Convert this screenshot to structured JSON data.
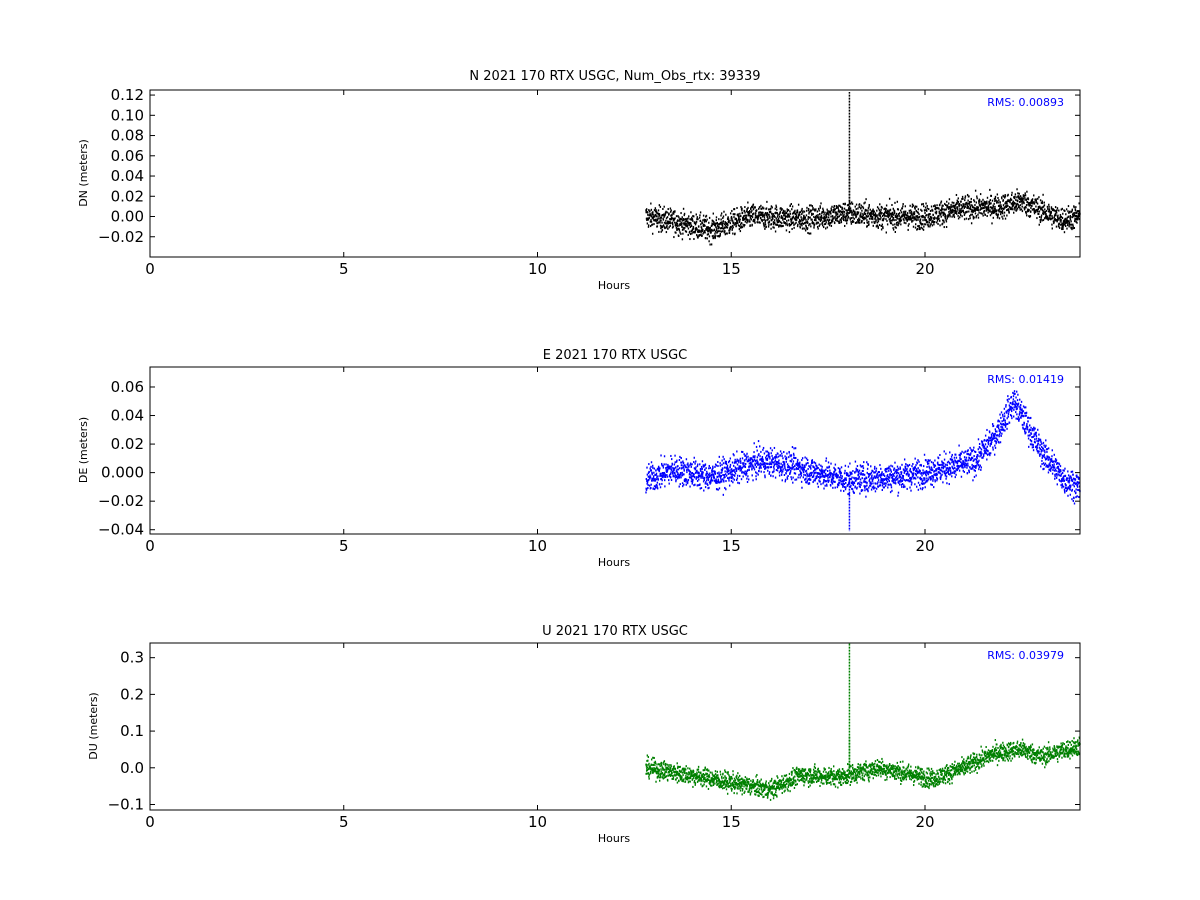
{
  "chart_data": [
    {
      "type": "scatter",
      "title": "N 2021 170 RTX  USGC, Num_Obs_rtx: 39339",
      "xlabel": "Hours",
      "ylabel": "DN (meters)",
      "xlim": [
        0,
        24
      ],
      "ylim": [
        -0.04,
        0.125
      ],
      "xticks": [
        0,
        5,
        10,
        15,
        20
      ],
      "yticks": [
        -0.02,
        0.0,
        0.02,
        0.04,
        0.06,
        0.08,
        0.1,
        0.12
      ],
      "ytick_labels": [
        "−0.02",
        "0.00",
        "0.02",
        "0.04",
        "0.06",
        "0.08",
        "0.10",
        "0.12"
      ],
      "color": "#000000",
      "annotation": "RMS:  0.00893",
      "series": [
        {
          "x_range": [
            12.8,
            24
          ],
          "trend": [
            [
              12.8,
              0.0
            ],
            [
              13.5,
              -0.005
            ],
            [
              14.5,
              -0.013
            ],
            [
              15.5,
              0.0
            ],
            [
              17.0,
              -0.002
            ],
            [
              18.0,
              0.003
            ],
            [
              19.0,
              0.0
            ],
            [
              20.0,
              0.0
            ],
            [
              21.0,
              0.008
            ],
            [
              22.0,
              0.01
            ],
            [
              22.5,
              0.015
            ],
            [
              23.5,
              -0.003
            ],
            [
              24.0,
              0.0
            ]
          ],
          "spread": 0.012,
          "spikes": [
            [
              18.05,
              0.123
            ],
            [
              18.05,
              0.045
            ]
          ]
        }
      ]
    },
    {
      "type": "scatter",
      "title": "E 2021 170 RTX  USGC",
      "xlabel": "Hours",
      "ylabel": "DE (meters)",
      "xlim": [
        0,
        24
      ],
      "ylim": [
        -0.043,
        0.074
      ],
      "xticks": [
        0,
        5,
        10,
        15,
        20
      ],
      "yticks": [
        -0.04,
        -0.02,
        0.0,
        0.02,
        0.04,
        0.06
      ],
      "ytick_labels": [
        "−0.04",
        "−0.02",
        "0.000",
        "0.02",
        "0.04",
        "0.06"
      ],
      "color": "#0000ff",
      "annotation": "RMS:  0.01419",
      "series": [
        {
          "x_range": [
            12.8,
            24
          ],
          "trend": [
            [
              12.8,
              -0.005
            ],
            [
              13.5,
              0.002
            ],
            [
              14.5,
              -0.003
            ],
            [
              15.8,
              0.008
            ],
            [
              16.5,
              0.005
            ],
            [
              17.5,
              -0.002
            ],
            [
              18.0,
              -0.005
            ],
            [
              19.5,
              -0.002
            ],
            [
              20.5,
              0.003
            ],
            [
              21.3,
              0.008
            ],
            [
              21.8,
              0.025
            ],
            [
              22.3,
              0.05
            ],
            [
              23.0,
              0.015
            ],
            [
              23.6,
              -0.005
            ],
            [
              24.0,
              -0.01
            ]
          ],
          "spread": 0.01,
          "spikes": [
            [
              18.05,
              -0.041
            ]
          ]
        }
      ]
    },
    {
      "type": "scatter",
      "title": "U 2021 170 RTX  USGC",
      "xlabel": "Hours",
      "ylabel": "DU (meters)",
      "xlim": [
        0,
        24
      ],
      "ylim": [
        -0.115,
        0.34
      ],
      "xticks": [
        0,
        5,
        10,
        15,
        20
      ],
      "yticks": [
        -0.1,
        0.0,
        0.1,
        0.2,
        0.3
      ],
      "ytick_labels": [
        "−0.1",
        "0.0",
        "0.1",
        "0.2",
        "0.3"
      ],
      "color": "#008000",
      "annotation": "RMS:  0.03979",
      "series": [
        {
          "x_range": [
            12.8,
            24
          ],
          "trend": [
            [
              12.8,
              0.0
            ],
            [
              14.5,
              -0.03
            ],
            [
              16.0,
              -0.06
            ],
            [
              16.8,
              -0.02
            ],
            [
              17.8,
              -0.025
            ],
            [
              18.8,
              0.0
            ],
            [
              20.2,
              -0.03
            ],
            [
              21.0,
              0.0
            ],
            [
              21.8,
              0.04
            ],
            [
              22.5,
              0.05
            ],
            [
              23.0,
              0.03
            ],
            [
              24.0,
              0.06
            ]
          ],
          "spread": 0.025,
          "spikes": [
            [
              18.05,
              0.34
            ],
            [
              18.05,
              0.085
            ]
          ]
        }
      ]
    }
  ]
}
